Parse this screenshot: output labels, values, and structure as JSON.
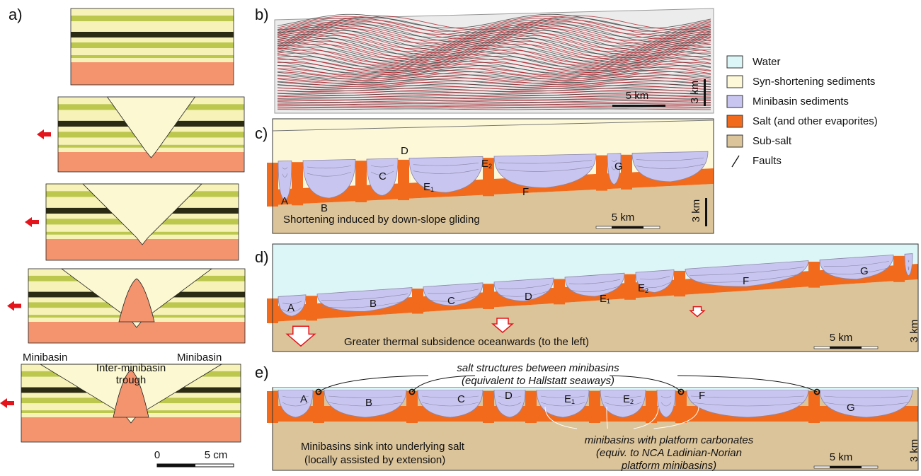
{
  "panel_labels": [
    "a)",
    "b)",
    "c)",
    "d)",
    "e)"
  ],
  "panel_a": {
    "labels": [
      "Minibasin",
      "Inter-minibasin",
      "trough",
      "Minibasin"
    ],
    "scale": [
      "0",
      "5 cm"
    ]
  },
  "panel_b": {
    "scale_h": "5 km",
    "scale_v": "3 km"
  },
  "legend": [
    {
      "label": "Water",
      "color": "#dcf5f6"
    },
    {
      "label": "Syn-shortening sediments",
      "color": "#fdf9d8"
    },
    {
      "label": "Minibasin sediments",
      "color": "#c8c5f0"
    },
    {
      "label": "Salt (and other evaporites)",
      "color": "#f26a1b"
    },
    {
      "label": "Sub-salt",
      "color": "#dcc49a"
    },
    {
      "label": "Faults"
    }
  ],
  "panel_c": {
    "minibasins": [
      {
        "letter": "A"
      },
      {
        "letter": "B"
      },
      {
        "letter": "C"
      },
      {
        "letter": "D"
      },
      {
        "letter": "E",
        "sub": "1"
      },
      {
        "letter": "E",
        "sub": "2"
      },
      {
        "letter": "F"
      },
      {
        "letter": "G"
      }
    ],
    "caption": "Shortening induced by down-slope gliding",
    "scale_h": "5 km",
    "scale_v": "3 km"
  },
  "panel_d": {
    "minibasins": [
      {
        "letter": "A"
      },
      {
        "letter": "B"
      },
      {
        "letter": "C"
      },
      {
        "letter": "D"
      },
      {
        "letter": "E",
        "sub": "1"
      },
      {
        "letter": "E",
        "sub": "2"
      },
      {
        "letter": "F"
      },
      {
        "letter": "G"
      }
    ],
    "caption": "Greater thermal subsidence oceanwards (to the left)",
    "scale_h": "5 km",
    "scale_v": "3 km"
  },
  "panel_e": {
    "minibasins": [
      {
        "letter": "A"
      },
      {
        "letter": "B"
      },
      {
        "letter": "C"
      },
      {
        "letter": "D"
      },
      {
        "letter": "E",
        "sub": "1"
      },
      {
        "letter": "E",
        "sub": "2"
      },
      {
        "letter": "F"
      },
      {
        "letter": "G"
      }
    ],
    "top_note": [
      "salt structures between minibasins",
      "(equivalent to Hallstatt seaways)"
    ],
    "platform_note": [
      "minibasins with platform carbonates",
      "(equiv. to NCA Ladinian-Norian",
      "platform minibasins)"
    ],
    "caption": [
      "Minibasins sink into underlying salt",
      "(locally assisted by extension)"
    ],
    "scale_h": "5 km",
    "scale_v": "3 km"
  }
}
